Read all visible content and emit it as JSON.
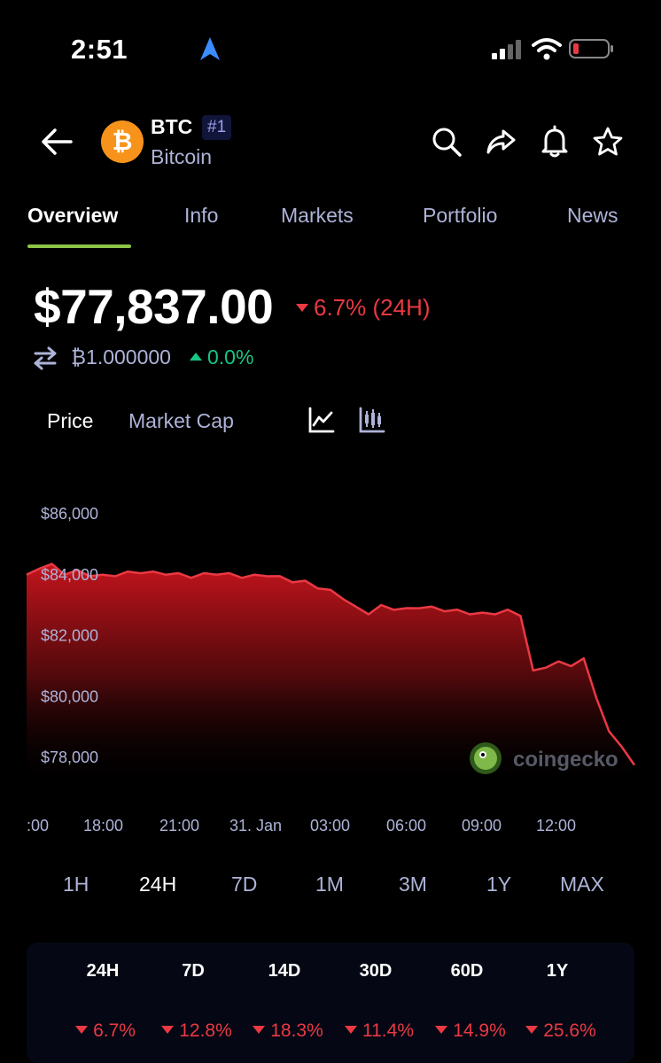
{
  "status_bar": {
    "time": "2:51",
    "location_icon": "location-arrow-icon",
    "signal_icon": "cellular-signal-icon",
    "wifi_icon": "wifi-icon",
    "battery_icon": "battery-low-icon"
  },
  "header": {
    "back_icon": "arrow-left-icon",
    "symbol": "BTC",
    "rank": "#1",
    "name": "Bitcoin",
    "actions": [
      "search-icon",
      "share-icon",
      "bell-icon",
      "star-icon"
    ]
  },
  "tabs": [
    {
      "label": "Overview",
      "active": true
    },
    {
      "label": "Info",
      "active": false
    },
    {
      "label": "Markets",
      "active": false
    },
    {
      "label": "Portfolio",
      "active": false
    },
    {
      "label": "News",
      "active": false
    }
  ],
  "price": {
    "value": "$77,837.00",
    "change": "6.7% (24H)",
    "btc_value": "₿1.000000",
    "btc_change": "0.0%"
  },
  "chart_toggles": {
    "price": "Price",
    "market_cap": "Market Cap",
    "line_icon": "line-chart-icon",
    "candle_icon": "candlestick-chart-icon"
  },
  "chart_data": {
    "type": "area",
    "y_tick_labels": [
      "$86,000",
      "$84,000",
      "$82,000",
      "$80,000",
      "$78,000"
    ],
    "x_tick_labels": [
      ":00",
      "18:00",
      "21:00",
      "31. Jan",
      "03:00",
      "06:00",
      "09:00",
      "12:00"
    ],
    "ylim": [
      77000,
      87000
    ],
    "x": [
      0,
      0.5,
      1,
      1.5,
      2,
      2.5,
      3,
      3.5,
      4,
      4.5,
      5,
      5.5,
      6,
      6.5,
      7,
      7.5,
      8,
      8.5,
      9,
      9.5,
      10,
      10.5,
      11,
      11.5,
      12,
      12.5,
      13,
      13.5,
      14,
      14.5,
      15,
      15.5,
      16,
      16.5,
      17,
      17.5,
      18,
      18.5,
      19,
      19.5,
      20,
      20.5,
      21,
      21.5,
      22,
      22.5,
      23,
      23.5,
      24
    ],
    "values": [
      84000,
      84250,
      84300,
      84050,
      84100,
      84000,
      83950,
      84000,
      84050,
      84100,
      84050,
      84050,
      84000,
      83950,
      84000,
      84050,
      84000,
      83950,
      83950,
      84000,
      83900,
      83800,
      83750,
      83600,
      83450,
      83250,
      82900,
      82750,
      82950,
      82900,
      82850,
      82950,
      82900,
      82850,
      82800,
      82750,
      82700,
      82750,
      82800,
      82700,
      80800,
      81000,
      81100,
      81050,
      81200,
      80000,
      78800,
      78400,
      77750
    ],
    "line_color": "#ea3943",
    "watermark": "coingecko"
  },
  "ranges": [
    {
      "label": "1H",
      "active": false
    },
    {
      "label": "24H",
      "active": true
    },
    {
      "label": "7D",
      "active": false
    },
    {
      "label": "1M",
      "active": false
    },
    {
      "label": "3M",
      "active": false
    },
    {
      "label": "1Y",
      "active": false
    },
    {
      "label": "MAX",
      "active": false
    }
  ],
  "performance": {
    "headers": [
      "24H",
      "7D",
      "14D",
      "30D",
      "60D",
      "1Y"
    ],
    "values": [
      "6.7%",
      "12.8%",
      "18.3%",
      "11.4%",
      "14.9%",
      "25.6%"
    ],
    "negative_color": "#ea3943"
  }
}
